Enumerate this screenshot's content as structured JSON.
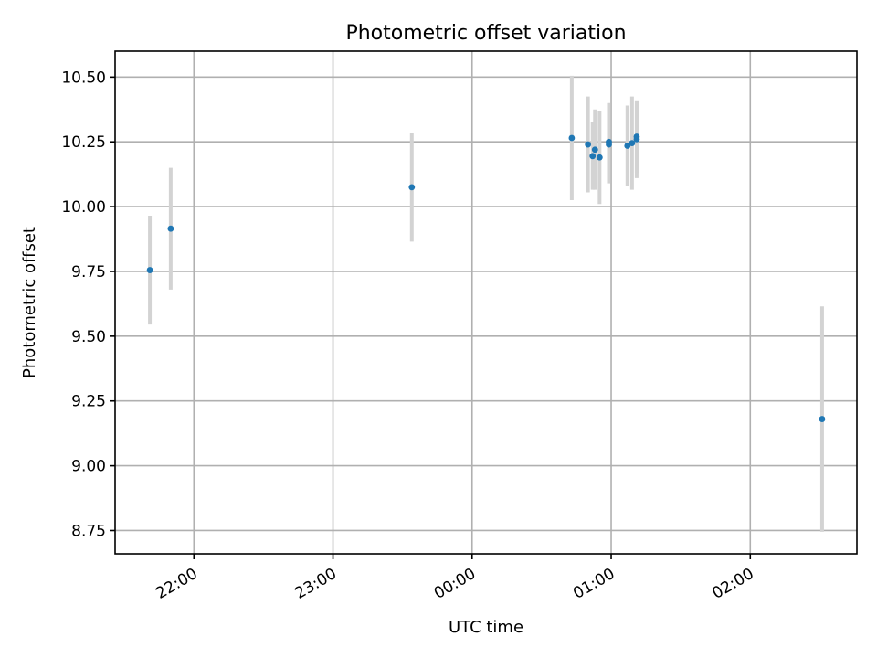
{
  "chart_data": {
    "type": "scatter",
    "title": "Photometric offset variation",
    "xlabel": "UTC time",
    "ylabel": "Photometric offset",
    "x_axis_type": "time",
    "xlim": [
      "21:26",
      "02:46"
    ],
    "ylim": [
      8.66,
      10.6
    ],
    "grid": true,
    "x_ticks": [
      "22:00",
      "23:00",
      "00:00",
      "01:00",
      "02:00"
    ],
    "y_ticks": [
      8.75,
      9.0,
      9.25,
      9.5,
      9.75,
      10.0,
      10.25,
      10.5
    ],
    "y_tick_labels": [
      "8.75",
      "9.00",
      "9.25",
      "9.50",
      "9.75",
      "10.00",
      "10.25",
      "10.50"
    ],
    "x_tick_rotation_deg": 30,
    "marker_color": "#1f77b4",
    "errorbar_color": "#d3d3d3",
    "series": [
      {
        "points": [
          {
            "x": "21:41",
            "y": 9.755,
            "err": 0.21
          },
          {
            "x": "21:50",
            "y": 9.915,
            "err": 0.235
          },
          {
            "x": "23:34",
            "y": 10.075,
            "err": 0.21
          },
          {
            "x": "00:43",
            "y": 10.265,
            "err": 0.24
          },
          {
            "x": "00:50",
            "y": 10.24,
            "err": 0.185
          },
          {
            "x": "00:52",
            "y": 10.195,
            "err": 0.13
          },
          {
            "x": "00:53",
            "y": 10.22,
            "err": 0.155
          },
          {
            "x": "00:55",
            "y": 10.19,
            "err": 0.18
          },
          {
            "x": "00:59",
            "y": 10.24,
            "err": 0.15
          },
          {
            "x": "00:59",
            "y": 10.25,
            "err": 0.15
          },
          {
            "x": "01:07",
            "y": 10.235,
            "err": 0.155
          },
          {
            "x": "01:09",
            "y": 10.245,
            "err": 0.18
          },
          {
            "x": "01:11",
            "y": 10.27,
            "err": 0.14
          },
          {
            "x": "01:11",
            "y": 10.26,
            "err": 0.15
          },
          {
            "x": "02:31",
            "y": 9.18,
            "err": 0.435
          }
        ]
      }
    ]
  }
}
